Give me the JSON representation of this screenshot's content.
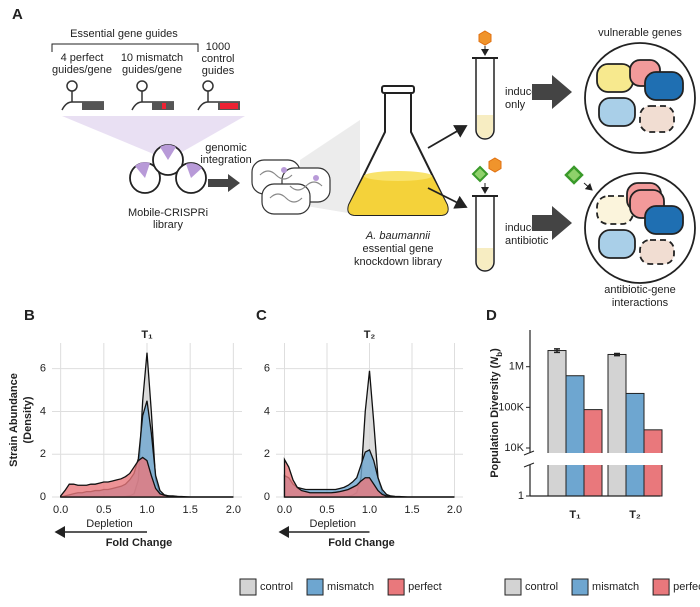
{
  "panel_a": {
    "label": "A",
    "guides_header": "Essential gene guides",
    "perfect": [
      "4 perfect",
      "guides/gene"
    ],
    "mismatch": [
      "10 mismatch",
      "guides/gene"
    ],
    "control": [
      "1000",
      "control",
      "guides"
    ],
    "integration": [
      "genomic",
      "integration"
    ],
    "library": [
      "Mobile-CRISPRi",
      "library"
    ],
    "organism": "A. baumannii",
    "knockdown": [
      "essential gene",
      "knockdown library"
    ],
    "inducer_only": [
      "inducer",
      "only"
    ],
    "inducer_antibiotic": [
      "inducer +",
      "antibiotic"
    ],
    "vulnerable": "vulnerable genes",
    "interactions": [
      "antibiotic-gene",
      "interactions"
    ]
  },
  "chart_data": [
    {
      "type": "density",
      "panel": "B",
      "title": "T₁",
      "y_label": [
        "Strain Abundance",
        "(Density)"
      ],
      "x_label": "Fold Change",
      "annotation": "Depletion",
      "x": [
        0,
        0.05,
        0.1,
        0.15,
        0.2,
        0.25,
        0.3,
        0.35,
        0.4,
        0.45,
        0.5,
        0.55,
        0.6,
        0.65,
        0.7,
        0.75,
        0.8,
        0.85,
        0.9,
        0.95,
        1.0,
        1.05,
        1.1,
        1.15,
        1.2,
        1.25,
        1.3,
        1.35,
        1.4,
        1.45,
        1.5,
        1.55,
        1.6,
        1.65,
        1.7,
        1.75,
        1.8,
        1.85,
        1.9,
        1.95,
        2.0
      ],
      "series": [
        {
          "name": "control",
          "color": "#d3d3d3",
          "values": [
            0,
            0,
            0,
            0,
            0,
            0,
            0,
            0,
            0,
            0,
            0,
            0,
            0,
            0,
            0.01,
            0.02,
            0.05,
            0.15,
            0.8,
            4.5,
            6.75,
            4.0,
            0.8,
            0.15,
            0.05,
            0.02,
            0.01,
            0,
            0,
            0,
            0,
            0,
            0,
            0,
            0,
            0,
            0,
            0,
            0,
            0,
            0
          ]
        },
        {
          "name": "mismatch",
          "color": "#6ea6d0",
          "values": [
            0,
            0.05,
            0.1,
            0.15,
            0.2,
            0.2,
            0.25,
            0.25,
            0.3,
            0.3,
            0.35,
            0.35,
            0.4,
            0.45,
            0.5,
            0.6,
            0.8,
            1.1,
            1.8,
            3.8,
            4.5,
            3.0,
            1.0,
            0.3,
            0.1,
            0.05,
            0.05,
            0.03,
            0.02,
            0.01,
            0,
            0,
            0,
            0,
            0,
            0,
            0,
            0,
            0,
            0,
            0
          ]
        },
        {
          "name": "perfect",
          "color": "#e9787c",
          "values": [
            0.05,
            0.3,
            0.6,
            0.6,
            0.55,
            0.55,
            0.55,
            0.6,
            0.6,
            0.65,
            0.7,
            0.7,
            0.75,
            0.8,
            0.85,
            0.95,
            1.1,
            1.4,
            1.7,
            1.85,
            1.7,
            1.0,
            0.4,
            0.15,
            0.08,
            0.05,
            0.03,
            0.02,
            0.01,
            0,
            0,
            0,
            0,
            0,
            0,
            0,
            0,
            0,
            0,
            0,
            0
          ]
        }
      ],
      "xlim": [
        -0.1,
        2.1
      ],
      "ylim": [
        0,
        7.2
      ],
      "xticks": [
        {
          "value": 0,
          "label": "0.0"
        },
        0.5,
        {
          "value": 1,
          "label": "1.0"
        },
        1.5,
        {
          "value": 2,
          "label": "2.0"
        }
      ],
      "yticks": [
        0,
        2,
        4,
        6
      ],
      "grid": true
    },
    {
      "type": "density",
      "panel": "C",
      "title": "T₂",
      "x_label": "Fold Change",
      "annotation": "Depletion",
      "x": [
        0,
        0.05,
        0.1,
        0.15,
        0.2,
        0.25,
        0.3,
        0.35,
        0.4,
        0.45,
        0.5,
        0.55,
        0.6,
        0.65,
        0.7,
        0.75,
        0.8,
        0.85,
        0.9,
        0.95,
        1.0,
        1.05,
        1.1,
        1.15,
        1.2,
        1.25,
        1.3,
        1.35,
        1.4,
        1.45,
        1.5,
        1.55,
        1.6,
        1.65,
        1.7,
        1.75,
        1.8,
        1.85,
        1.9,
        1.95,
        2.0
      ],
      "series": [
        {
          "name": "control",
          "color": "#d3d3d3",
          "values": [
            0,
            0,
            0,
            0,
            0,
            0,
            0,
            0,
            0,
            0,
            0,
            0,
            0,
            0,
            0.01,
            0.03,
            0.08,
            0.2,
            0.9,
            4.0,
            5.9,
            3.5,
            0.9,
            0.2,
            0.05,
            0.02,
            0.01,
            0,
            0,
            0,
            0,
            0,
            0,
            0,
            0,
            0,
            0,
            0,
            0,
            0,
            0
          ]
        },
        {
          "name": "mismatch",
          "color": "#6ea6d0",
          "values": [
            1.0,
            0.9,
            0.6,
            0.45,
            0.4,
            0.35,
            0.35,
            0.35,
            0.35,
            0.35,
            0.35,
            0.35,
            0.35,
            0.4,
            0.45,
            0.55,
            0.7,
            0.9,
            1.5,
            2.1,
            2.2,
            1.7,
            0.9,
            0.35,
            0.12,
            0.05,
            0.03,
            0.02,
            0.01,
            0,
            0,
            0,
            0,
            0,
            0,
            0,
            0,
            0,
            0,
            0,
            0
          ]
        },
        {
          "name": "perfect",
          "color": "#e9787c",
          "values": [
            1.75,
            1.4,
            0.8,
            0.45,
            0.3,
            0.25,
            0.2,
            0.2,
            0.2,
            0.2,
            0.2,
            0.2,
            0.22,
            0.25,
            0.3,
            0.35,
            0.45,
            0.55,
            0.75,
            0.9,
            0.9,
            0.6,
            0.3,
            0.12,
            0.05,
            0.03,
            0.01,
            0,
            0,
            0,
            0,
            0,
            0,
            0,
            0,
            0,
            0,
            0,
            0,
            0,
            0
          ]
        }
      ],
      "xlim": [
        -0.1,
        2.1
      ],
      "ylim": [
        0,
        7.2
      ],
      "xticks": [
        {
          "value": 0,
          "label": "0.0"
        },
        0.5,
        {
          "value": 1,
          "label": "1.0"
        },
        1.5,
        {
          "value": 2,
          "label": "2.0"
        }
      ],
      "yticks": [
        0,
        2,
        4,
        6
      ],
      "grid": true
    },
    {
      "type": "bar",
      "panel": "D",
      "y_label": [
        "Population Diversity (",
        "N",
        "b",
        ")"
      ],
      "categories": [
        "T₁",
        "T₂"
      ],
      "series": [
        {
          "name": "control",
          "color": "#d3d3d3",
          "values": [
            2500000,
            2000000
          ],
          "errors": [
            250000,
            120000
          ]
        },
        {
          "name": "mismatch",
          "color": "#6ea6d0",
          "values": [
            600000,
            220000
          ]
        },
        {
          "name": "perfect",
          "color": "#e9787c",
          "values": [
            88000,
            28000
          ]
        }
      ],
      "ylim": [
        1,
        8000000
      ],
      "log_scale": true,
      "axis_break": true,
      "yticks": [
        1,
        {
          "value": 10000,
          "label": "10K"
        },
        {
          "value": 100000,
          "label": "100K"
        },
        {
          "value": 1000000,
          "label": "1M"
        }
      ]
    }
  ]
}
